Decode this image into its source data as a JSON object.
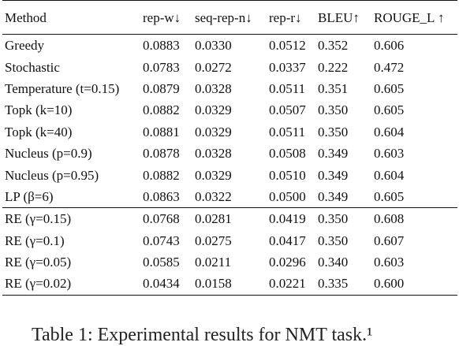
{
  "table": {
    "headers": [
      "Method",
      "rep-w↓",
      "seq-rep-n↓",
      "rep-r↓",
      "BLEU↑",
      "ROUGE_L ↑"
    ],
    "rows_group1": [
      [
        "Greedy",
        "0.0883",
        "0.0330",
        "0.0512",
        "0.352",
        "0.606"
      ],
      [
        "Stochastic",
        "0.0783",
        "0.0272",
        "0.0337",
        "0.222",
        "0.472"
      ],
      [
        "Temperature (t=0.15)",
        "0.0879",
        "0.0328",
        "0.0511",
        "0.351",
        "0.605"
      ],
      [
        "Topk (k=10)",
        "0.0882",
        "0.0329",
        "0.0507",
        "0.350",
        "0.605"
      ],
      [
        "Topk (k=40)",
        "0.0881",
        "0.0329",
        "0.0511",
        "0.350",
        "0.604"
      ],
      [
        "Nucleus (p=0.9)",
        "0.0878",
        "0.0328",
        "0.0508",
        "0.349",
        "0.603"
      ],
      [
        "Nucleus (p=0.95)",
        "0.0882",
        "0.0329",
        "0.0510",
        "0.349",
        "0.604"
      ],
      [
        "LP (β=6)",
        "0.0863",
        "0.0322",
        "0.0500",
        "0.349",
        "0.605"
      ]
    ],
    "rows_group2": [
      [
        "RE (γ=0.15)",
        "0.0768",
        "0.0281",
        "0.0419",
        "0.350",
        "0.608"
      ],
      [
        "RE (γ=0.1)",
        "0.0743",
        "0.0275",
        "0.0417",
        "0.350",
        "0.607"
      ],
      [
        "RE (γ=0.05)",
        "0.0585",
        "0.0211",
        "0.0296",
        "0.340",
        "0.603"
      ],
      [
        "RE (γ=0.02)",
        "0.0434",
        "0.0158",
        "0.0221",
        "0.335",
        "0.600"
      ]
    ]
  },
  "caption": "Table 1: Experimental results for NMT task.¹"
}
